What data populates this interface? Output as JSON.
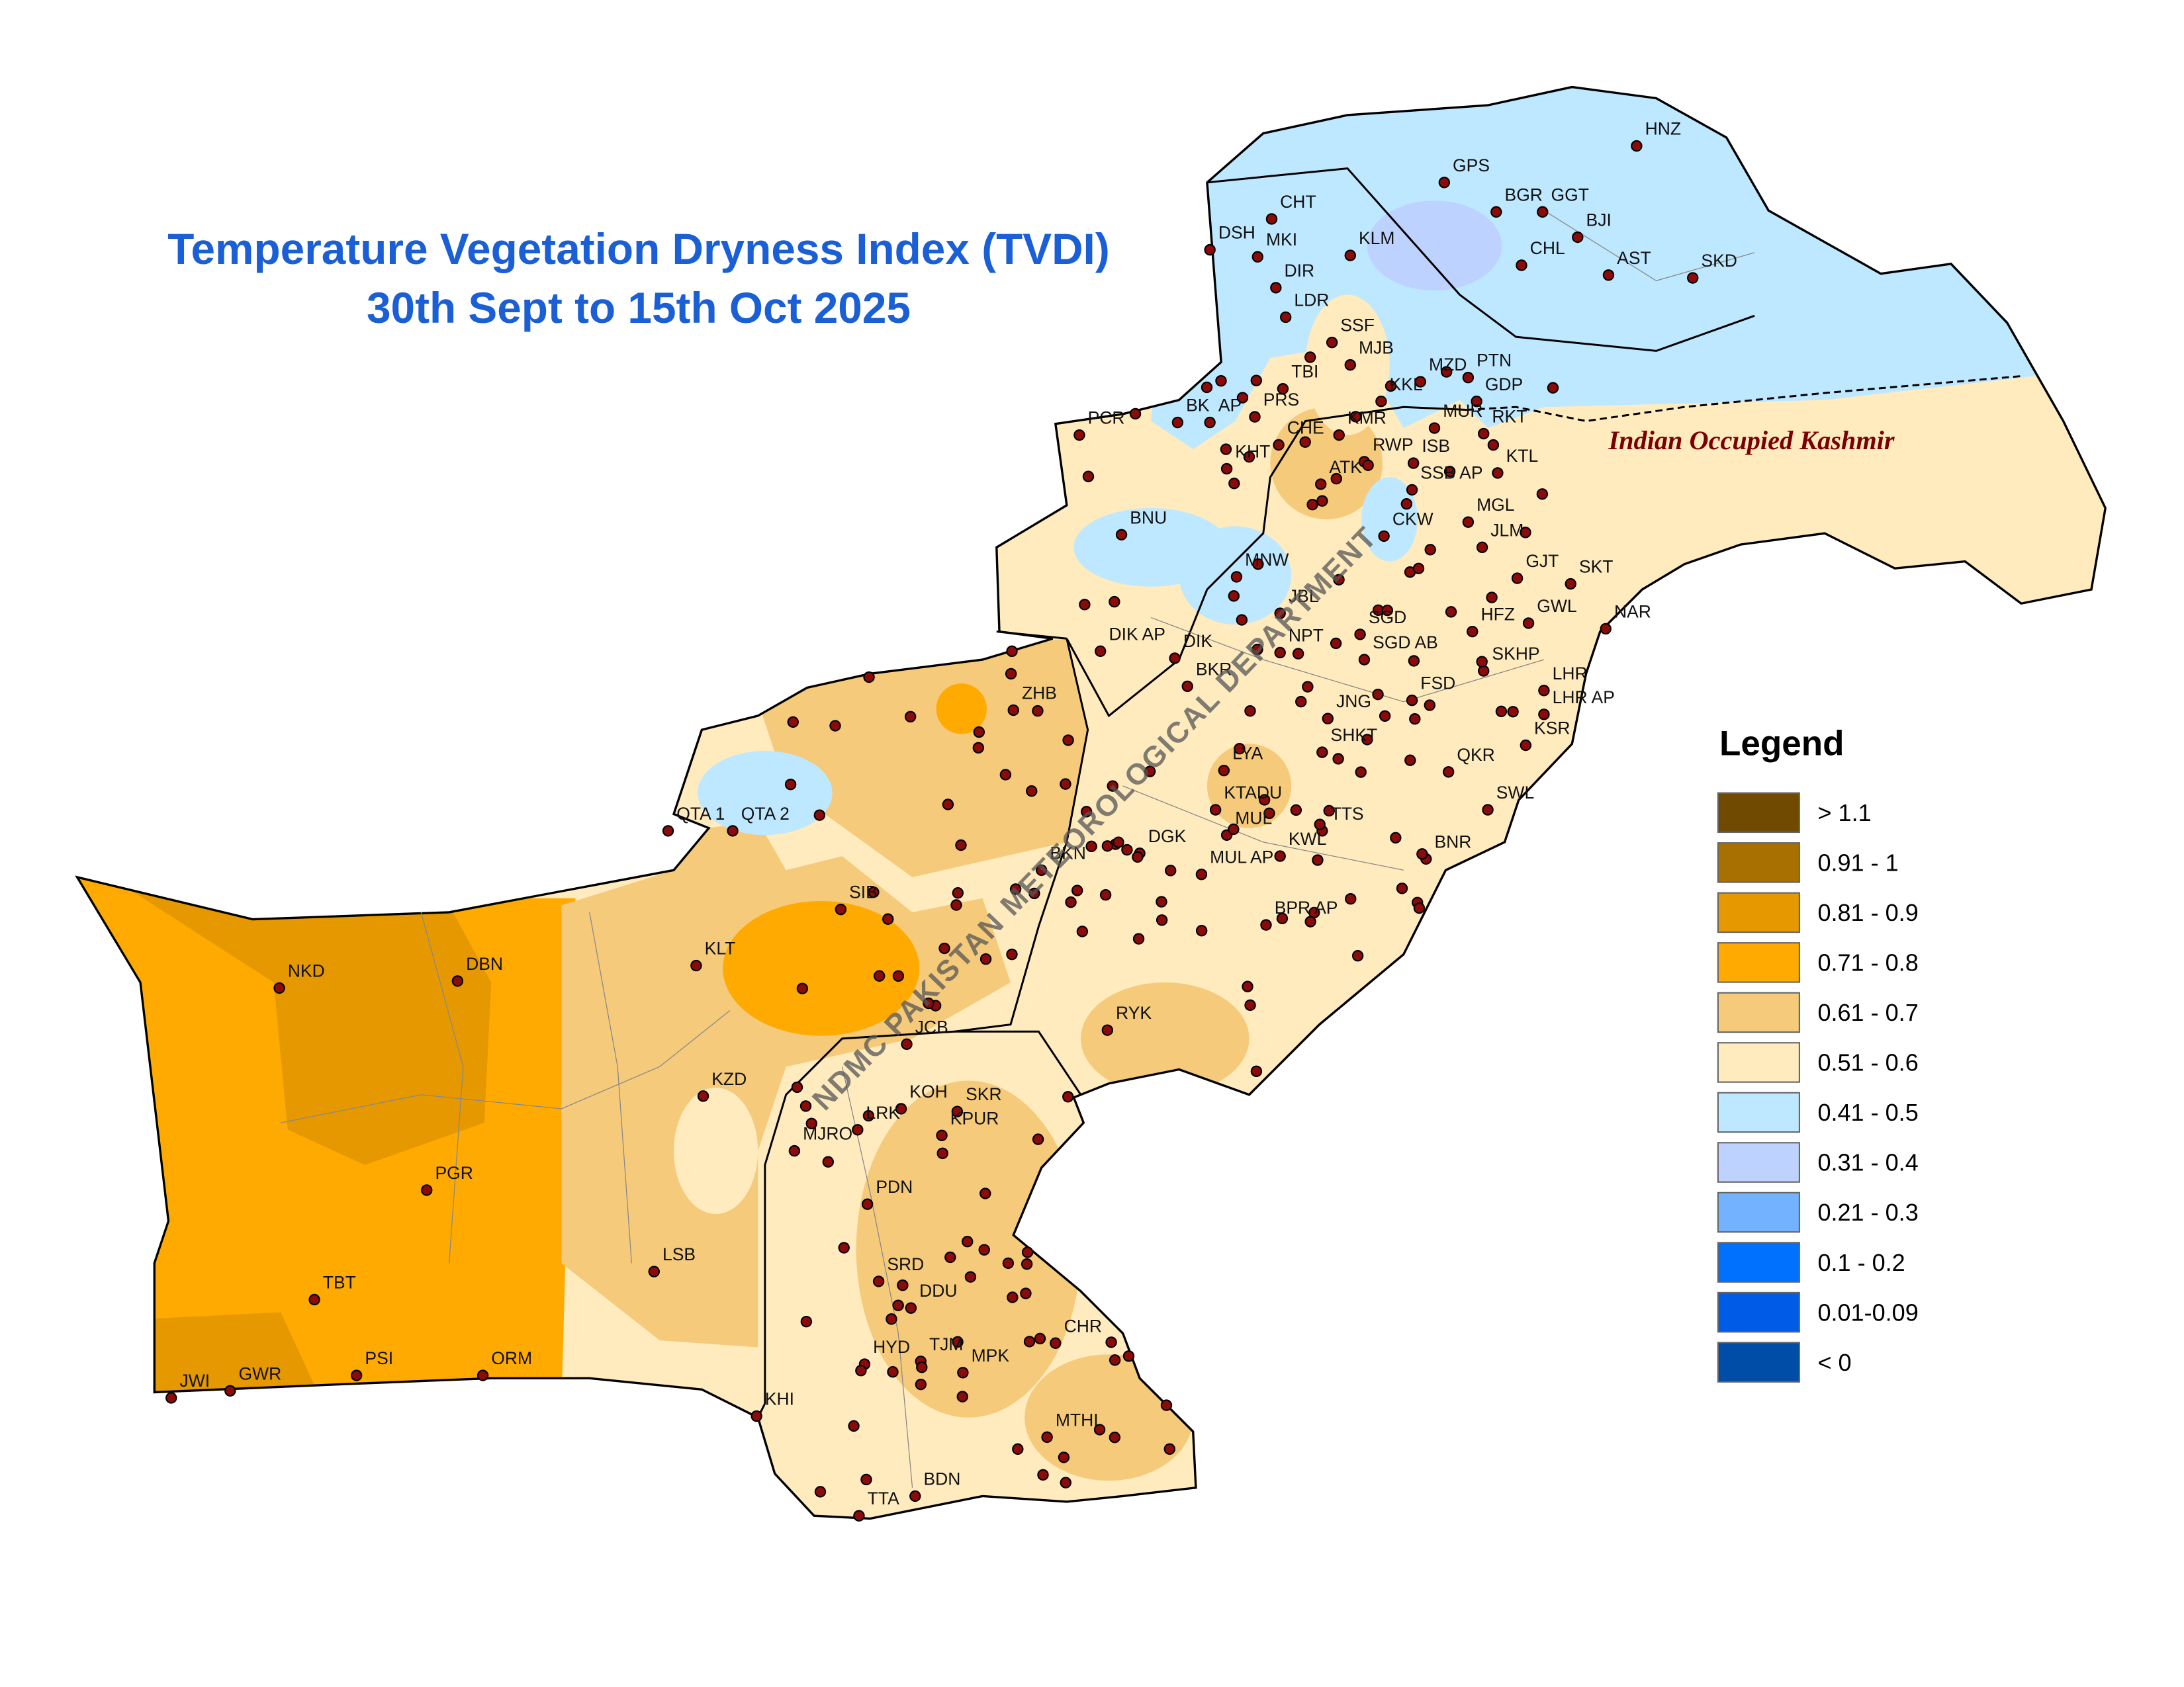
{
  "title": "Temperature Vegetation Dryness Index (TVDI)",
  "subtitle": "30th Sept to 15th Oct 2025",
  "region_label": "Indian Occupied Kashmir",
  "watermark": "NDMC PAKISTAN METEOROLOGICAL DEPARTMENT",
  "legend": {
    "title": "Legend",
    "items": [
      {
        "label": "> 1.1",
        "color": "#704a00"
      },
      {
        "label": "0.91 - 1",
        "color": "#a87000"
      },
      {
        "label": "0.81 - 0.9",
        "color": "#e69800"
      },
      {
        "label": "0.71 - 0.8",
        "color": "#ffaa00"
      },
      {
        "label": "0.61 - 0.7",
        "color": "#f5ca7a"
      },
      {
        "label": "0.51 - 0.6",
        "color": "#ffebbe"
      },
      {
        "label": "0.41 - 0.5",
        "color": "#bee8ff"
      },
      {
        "label": "0.31 - 0.4",
        "color": "#bed2ff"
      },
      {
        "label": "0.21 - 0.3",
        "color": "#73b2ff"
      },
      {
        "label": "0.1 - 0.2",
        "color": "#0070ff"
      },
      {
        "label": "0.01-0.09",
        "color": "#005ce6"
      },
      {
        "label": "< 0",
        "color": "#004da8"
      }
    ]
  },
  "stations": [
    "HNZ",
    "GPS",
    "BGR",
    "GGT",
    "BJI",
    "CHT",
    "DSH",
    "MKI",
    "KLM",
    "CHL",
    "AST",
    "SKD",
    "DIR",
    "LDR",
    "SSF",
    "MJB",
    "TBI",
    "MZD",
    "PTN",
    "KKL",
    "GDP",
    "BK",
    "AP",
    "PRS",
    "CHE",
    "KMR",
    "MUR",
    "RKT",
    "PCR",
    "KHT",
    "RWP",
    "ISB",
    "ATK",
    "SSB AP",
    "KTL",
    "BNU",
    "CKW",
    "MGL",
    "JLM",
    "MNW",
    "JBL",
    "GJT",
    "SKT",
    "GWL",
    "HFZ",
    "NAR",
    "SGD",
    "DIK AP",
    "DIK",
    "NPT",
    "SGD AB",
    "SKHP",
    "BKR",
    "FSD",
    "LHR",
    "LHR AP",
    "ZHB",
    "JNG",
    "SHKT",
    "KSR",
    "LYA",
    "QKR",
    "KTADU",
    "SWL",
    "QTA 1",
    "QTA 2",
    "MUL",
    "TTS",
    "DGK",
    "KWL",
    "MUL AP",
    "BKN",
    "BNR",
    "SIB",
    "BPR AP",
    "NKD",
    "DBN",
    "KLT",
    "RYK",
    "JCB",
    "KZD",
    "KOH",
    "SKR",
    "LRK",
    "KPUR",
    "MJRO",
    "PGR",
    "PDN",
    "LSB",
    "SRD",
    "TBT",
    "DDU",
    "CHR",
    "HYD",
    "TJM",
    "MPK",
    "PSI",
    "ORM",
    "JWI",
    "GWR",
    "KHI",
    "MTHI",
    "BDN",
    "TTA"
  ]
}
